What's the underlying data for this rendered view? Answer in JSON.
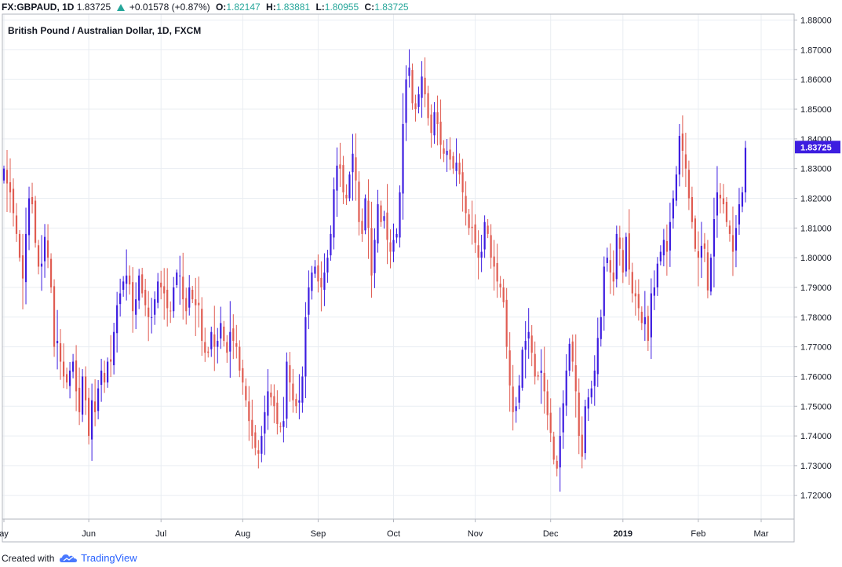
{
  "header": {
    "symbol": "FX:GBPAUD, 1D",
    "last": "1.83725",
    "change": "+0.01578 (+0.87%)",
    "o_label": "O:",
    "o_value": "1.82147",
    "h_label": "H:",
    "h_value": "1.83881",
    "l_label": "L:",
    "l_value": "1.80955",
    "c_label": "C:",
    "c_value": "1.83725"
  },
  "footer": {
    "created_with": "Created with",
    "brand": "TradingView"
  },
  "colors": {
    "up": "#3d1de0",
    "down": "#e05c52",
    "grid": "#e9edf2",
    "price_tag": "#3d1de0"
  },
  "chart_data": {
    "type": "candlestick",
    "title": "British Pound / Australian Dollar, 1D, FXCM",
    "price_tag": "1.83725",
    "ylim": [
      1.712,
      1.882
    ],
    "y_ticks": [
      "1.72000",
      "1.73000",
      "1.74000",
      "1.75000",
      "1.76000",
      "1.77000",
      "1.78000",
      "1.79000",
      "1.80000",
      "1.81000",
      "1.82000",
      "1.83000",
      "1.84000",
      "1.85000",
      "1.86000",
      "1.87000",
      "1.88000"
    ],
    "x_ticks": [
      {
        "label": "ay",
        "index": 0
      },
      {
        "label": "Jun",
        "index": 27
      },
      {
        "label": "Jul",
        "index": 50
      },
      {
        "label": "Aug",
        "index": 76
      },
      {
        "label": "Sep",
        "index": 100
      },
      {
        "label": "Oct",
        "index": 124
      },
      {
        "label": "Nov",
        "index": 150
      },
      {
        "label": "Dec",
        "index": 174
      },
      {
        "label": "2019",
        "index": 197
      },
      {
        "label": "Feb",
        "index": 221
      },
      {
        "label": "Mar",
        "index": 241
      }
    ],
    "x_range": [
      0,
      244
    ],
    "closes": [
      1.83,
      1.825,
      1.822,
      1.815,
      1.808,
      1.8,
      1.793,
      1.808,
      1.82,
      1.818,
      1.805,
      1.797,
      1.798,
      1.807,
      1.8,
      1.79,
      1.77,
      1.772,
      1.765,
      1.76,
      1.758,
      1.762,
      1.765,
      1.755,
      1.748,
      1.76,
      1.752,
      1.74,
      1.752,
      1.748,
      1.756,
      1.762,
      1.758,
      1.765,
      1.765,
      1.775,
      1.784,
      1.788,
      1.792,
      1.794,
      1.791,
      1.782,
      1.786,
      1.794,
      1.788,
      1.784,
      1.78,
      1.78,
      1.786,
      1.792,
      1.79,
      1.788,
      1.783,
      1.782,
      1.79,
      1.795,
      1.794,
      1.786,
      1.782,
      1.79,
      1.786,
      1.784,
      1.784,
      1.772,
      1.768,
      1.768,
      1.775,
      1.77,
      1.772,
      1.778,
      1.772,
      1.768,
      1.775,
      1.772,
      1.77,
      1.762,
      1.758,
      1.752,
      1.745,
      1.74,
      1.736,
      1.734,
      1.74,
      1.748,
      1.755,
      1.753,
      1.75,
      1.744,
      1.743,
      1.745,
      1.765,
      1.758,
      1.752,
      1.75,
      1.752,
      1.76,
      1.78,
      1.79,
      1.795,
      1.797,
      1.792,
      1.79,
      1.795,
      1.8,
      1.808,
      1.823,
      1.831,
      1.83,
      1.822,
      1.82,
      1.828,
      1.835,
      1.826,
      1.812,
      1.808,
      1.82,
      1.81,
      1.794,
      1.806,
      1.818,
      1.812,
      1.814,
      1.806,
      1.802,
      1.806,
      1.808,
      1.822,
      1.845,
      1.86,
      1.864,
      1.852,
      1.85,
      1.855,
      1.861,
      1.855,
      1.847,
      1.842,
      1.849,
      1.845,
      1.838,
      1.835,
      1.836,
      1.833,
      1.83,
      1.832,
      1.828,
      1.822,
      1.815,
      1.81,
      1.81,
      1.805,
      1.8,
      1.802,
      1.812,
      1.808,
      1.8,
      1.797,
      1.792,
      1.79,
      1.785,
      1.77,
      1.757,
      1.748,
      1.75,
      1.757,
      1.769,
      1.772,
      1.775,
      1.768,
      1.76,
      1.76,
      1.762,
      1.755,
      1.747,
      1.741,
      1.732,
      1.729,
      1.74,
      1.751,
      1.762,
      1.771,
      1.765,
      1.755,
      1.74,
      1.733,
      1.75,
      1.753,
      1.756,
      1.762,
      1.773,
      1.78,
      1.797,
      1.8,
      1.795,
      1.792,
      1.808,
      1.803,
      1.795,
      1.807,
      1.796,
      1.788,
      1.787,
      1.783,
      1.778,
      1.78,
      1.772,
      1.788,
      1.79,
      1.798,
      1.802,
      1.806,
      1.802,
      1.812,
      1.82,
      1.828,
      1.841,
      1.836,
      1.83,
      1.82,
      1.812,
      1.803,
      1.8,
      1.804,
      1.803,
      1.789,
      1.8,
      1.813,
      1.822,
      1.82,
      1.818,
      1.812,
      1.808,
      1.802,
      1.81,
      1.818,
      1.822,
      1.837
    ]
  }
}
